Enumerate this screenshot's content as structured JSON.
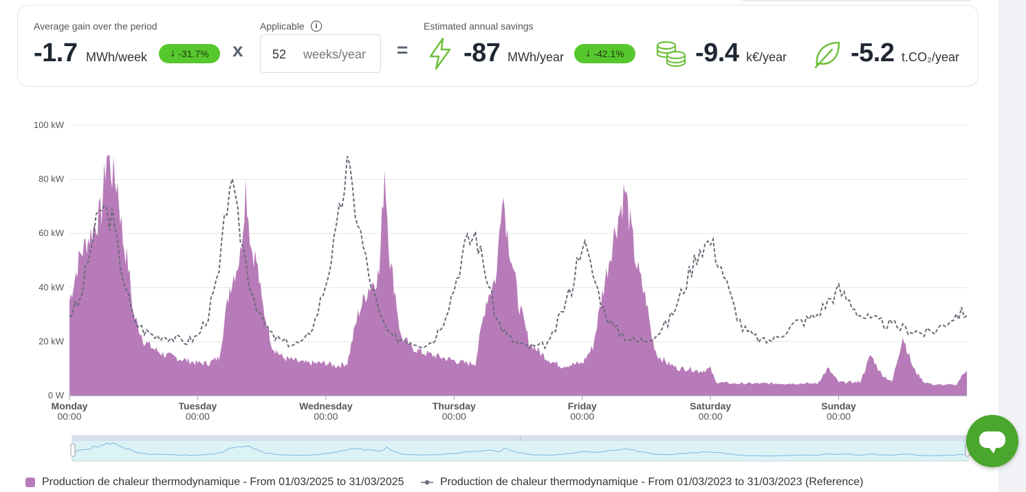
{
  "kpis": {
    "average_gain": {
      "label": "Average gain over the period",
      "value": "-1.7",
      "unit": "MWh/week",
      "badge": "-31.7%"
    },
    "multiply_sign": "x",
    "applicable": {
      "label": "Applicable",
      "value": "52",
      "unit": "weeks/year"
    },
    "equals_sign": "=",
    "estimated": {
      "label": "Estimated annual savings",
      "energy_value": "-87",
      "energy_unit": "MWh/year",
      "energy_badge": "-42.1%",
      "money_value": "-9.4",
      "money_unit": "k€/year",
      "co2_value": "-5.2",
      "co2_unit": "t.CO₂/year"
    },
    "icons": {
      "info": "info-icon",
      "down_arrow": "arrow-down-icon",
      "energy": "lightning-icon",
      "money": "coins-icon",
      "co2": "leaf-icon"
    },
    "colors": {
      "badge_green": "#57c72e",
      "icon_green": "#6fbf3c"
    }
  },
  "chart_data": {
    "type": "area",
    "xlabel": "",
    "ylabel": "",
    "ylim": [
      0,
      100
    ],
    "yticks": [
      "0 W",
      "20 kW",
      "40 kW",
      "60 kW",
      "80 kW",
      "100 kW"
    ],
    "xticks": [
      {
        "day": "Monday",
        "time": "00:00"
      },
      {
        "day": "Tuesday",
        "time": "00:00"
      },
      {
        "day": "Wednesday",
        "time": "00:00"
      },
      {
        "day": "Thursday",
        "time": "00:00"
      },
      {
        "day": "Friday",
        "time": "00:00"
      },
      {
        "day": "Saturday",
        "time": "00:00"
      },
      {
        "day": "Sunday",
        "time": "00:00"
      }
    ],
    "grid": true,
    "legend_position": "bottom",
    "series": [
      {
        "name": "Production de chaleur thermodynamique - From 01/03/2025 to 31/03/2025",
        "style": "area",
        "color": "#b77bb9",
        "x_hours": [
          0,
          2,
          4,
          6,
          7,
          8,
          9,
          10,
          11,
          12,
          14,
          16,
          18,
          20,
          22,
          24,
          26,
          28,
          30,
          32,
          33,
          34,
          35,
          36,
          38,
          40,
          44,
          48,
          50,
          52,
          54,
          56,
          58,
          59,
          60,
          61,
          62,
          64,
          66,
          68,
          70,
          72,
          74,
          76,
          78,
          80,
          81,
          82,
          83,
          84,
          86,
          88,
          90,
          92,
          96,
          98,
          100,
          102,
          104,
          106,
          107,
          108,
          109,
          110,
          112,
          114,
          116,
          118,
          120,
          121,
          121.5,
          124,
          126,
          128,
          130,
          132,
          134,
          136,
          138,
          140,
          142,
          144,
          146,
          148,
          150,
          152,
          154,
          156,
          158,
          160,
          162,
          164,
          166,
          168
        ],
        "values": [
          35,
          52,
          60,
          68,
          90,
          82,
          78,
          58,
          48,
          30,
          20,
          17,
          15,
          14,
          13,
          12,
          12,
          14,
          40,
          52,
          78,
          55,
          50,
          35,
          18,
          14,
          12,
          12,
          11,
          12,
          30,
          40,
          45,
          85,
          50,
          38,
          22,
          18,
          16,
          15,
          14,
          13,
          12,
          12,
          35,
          45,
          78,
          60,
          48,
          35,
          20,
          16,
          13,
          11,
          12,
          18,
          40,
          60,
          76,
          50,
          42,
          35,
          22,
          15,
          12,
          10,
          10,
          9,
          10,
          5,
          5,
          4.5,
          4.5,
          4.5,
          4.5,
          4.5,
          4.5,
          4.5,
          4.5,
          4.5,
          10,
          5,
          5,
          5,
          15,
          8,
          5,
          22,
          10,
          5,
          4,
          4,
          4,
          10
        ]
      },
      {
        "name": "Production de chaleur thermodynamique - From 01/03/2023 to 31/03/2023 (Reference)",
        "style": "dashed-line",
        "color": "#6b6b78",
        "x_hours": [
          0,
          2,
          4,
          6,
          8,
          10,
          12,
          14,
          16,
          18,
          20,
          22,
          24,
          26,
          28,
          30,
          32,
          34,
          36,
          38,
          40,
          42,
          44,
          46,
          48,
          50,
          52,
          54,
          56,
          58,
          60,
          62,
          64,
          66,
          68,
          70,
          72,
          74,
          76,
          78,
          80,
          82,
          84,
          86,
          88,
          90,
          92,
          94,
          96,
          98,
          100,
          102,
          104,
          106,
          108,
          110,
          112,
          114,
          116,
          118,
          120,
          122,
          124,
          126,
          128,
          130,
          132,
          134,
          136,
          138,
          140,
          142,
          144,
          146,
          148,
          150,
          152,
          154,
          156,
          158,
          160,
          162,
          164,
          166,
          168
        ],
        "values": [
          30,
          35,
          55,
          70,
          65,
          45,
          28,
          24,
          22,
          22,
          21,
          20,
          22,
          30,
          45,
          80,
          60,
          40,
          28,
          22,
          20,
          19,
          20,
          28,
          42,
          60,
          85,
          65,
          45,
          30,
          22,
          21,
          20,
          19,
          20,
          28,
          40,
          55,
          60,
          45,
          28,
          22,
          19,
          18,
          18,
          20,
          30,
          40,
          58,
          45,
          32,
          25,
          22,
          20,
          21,
          23,
          27,
          35,
          45,
          55,
          57,
          48,
          35,
          25,
          22,
          20,
          21,
          24,
          27,
          28,
          30,
          35,
          39,
          35,
          30,
          28,
          27,
          26,
          25,
          24,
          23,
          24,
          27,
          30,
          31
        ]
      }
    ]
  },
  "navigator": {
    "handle_label": "⋮"
  },
  "chat": {
    "icon": "chat-bubble-icon"
  }
}
